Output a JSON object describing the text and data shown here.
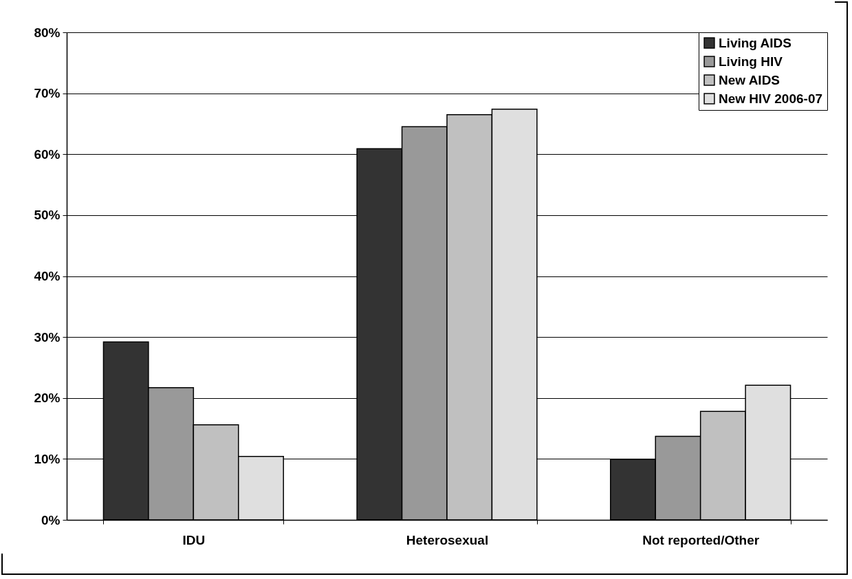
{
  "chart_data": {
    "type": "bar",
    "categories": [
      "IDU",
      "Heterosexual",
      "Not reported/Other"
    ],
    "series": [
      {
        "name": "Living AIDS",
        "color": "#333333",
        "values": [
          29.2,
          60.9,
          9.9
        ]
      },
      {
        "name": "Living HIV",
        "color": "#999999",
        "values": [
          21.7,
          64.5,
          13.7
        ]
      },
      {
        "name": "New AIDS",
        "color": "#c0c0c0",
        "values": [
          15.6,
          66.5,
          17.8
        ]
      },
      {
        "name": "New HIV 2006-07",
        "color": "#dfdfdf",
        "values": [
          10.4,
          67.4,
          22.1
        ]
      }
    ],
    "ylim": [
      0,
      80
    ],
    "yticks": [
      {
        "value": 0,
        "label": "0%"
      },
      {
        "value": 10,
        "label": "10%"
      },
      {
        "value": 20,
        "label": "20%"
      },
      {
        "value": 30,
        "label": "30%"
      },
      {
        "value": 40,
        "label": "40%"
      },
      {
        "value": 50,
        "label": "50%"
      },
      {
        "value": 60,
        "label": "60%"
      },
      {
        "value": 70,
        "label": "70%"
      },
      {
        "value": 80,
        "label": "80%"
      }
    ],
    "grid": "y",
    "legend": "top right"
  }
}
